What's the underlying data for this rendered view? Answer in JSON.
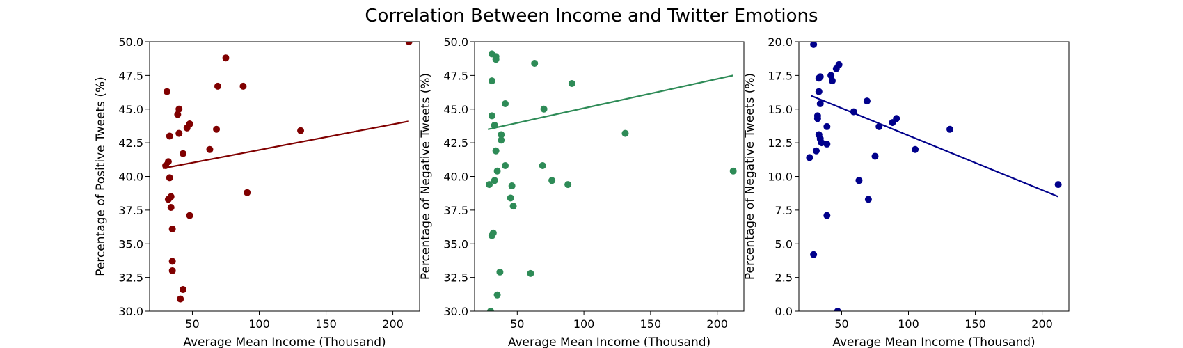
{
  "figure": {
    "title": "Correlation Between Income and Twitter Emotions"
  },
  "chart_data": [
    {
      "type": "scatter",
      "xlabel": "Average Mean Income (Thousand)",
      "ylabel": "Percentage of Positive Tweets (%)",
      "xlim": [
        18,
        220
      ],
      "ylim": [
        30,
        50
      ],
      "xticks": [
        50,
        100,
        150,
        200
      ],
      "yticks": [
        "30.0",
        "32.5",
        "35.0",
        "37.5",
        "40.0",
        "42.5",
        "45.0",
        "47.5",
        "50.0"
      ],
      "color": "#800000",
      "points": [
        [
          212,
          50.0
        ],
        [
          75,
          48.8
        ],
        [
          69,
          46.7
        ],
        [
          88,
          46.7
        ],
        [
          31,
          46.3
        ],
        [
          40,
          45.0
        ],
        [
          39,
          44.6
        ],
        [
          48,
          43.9
        ],
        [
          46,
          43.6
        ],
        [
          68,
          43.5
        ],
        [
          131,
          43.4
        ],
        [
          40,
          43.2
        ],
        [
          33,
          43.0
        ],
        [
          63,
          42.0
        ],
        [
          43,
          41.7
        ],
        [
          32,
          41.1
        ],
        [
          30,
          40.8
        ],
        [
          33,
          39.9
        ],
        [
          91,
          38.8
        ],
        [
          34,
          38.5
        ],
        [
          32,
          38.3
        ],
        [
          48,
          37.1
        ],
        [
          34,
          37.7
        ],
        [
          35,
          36.1
        ],
        [
          35,
          33.7
        ],
        [
          35,
          33.0
        ],
        [
          43,
          31.6
        ],
        [
          41,
          30.9
        ]
      ],
      "trend": {
        "x": [
          28,
          212
        ],
        "y": [
          40.6,
          44.1
        ]
      }
    },
    {
      "type": "scatter",
      "xlabel": "Average Mean Income (Thousand)",
      "ylabel": "Percentage of Negative Tweets (%)",
      "xlim": [
        18,
        220
      ],
      "ylim": [
        30,
        50
      ],
      "xticks": [
        50,
        100,
        150,
        200
      ],
      "yticks": [
        "30.0",
        "32.5",
        "35.0",
        "37.5",
        "40.0",
        "42.5",
        "45.0",
        "47.5",
        "50.0"
      ],
      "color": "#2e8b57",
      "points": [
        [
          31,
          49.1
        ],
        [
          34,
          48.9
        ],
        [
          34,
          48.7
        ],
        [
          63,
          48.4
        ],
        [
          31,
          47.1
        ],
        [
          91,
          46.9
        ],
        [
          41,
          45.4
        ],
        [
          70,
          45.0
        ],
        [
          31,
          44.5
        ],
        [
          33,
          43.8
        ],
        [
          131,
          43.2
        ],
        [
          38,
          43.1
        ],
        [
          38,
          42.7
        ],
        [
          34,
          41.9
        ],
        [
          41,
          40.8
        ],
        [
          69,
          40.8
        ],
        [
          35,
          40.4
        ],
        [
          212,
          40.4
        ],
        [
          33,
          39.7
        ],
        [
          76,
          39.7
        ],
        [
          29,
          39.4
        ],
        [
          46,
          39.3
        ],
        [
          88,
          39.4
        ],
        [
          45,
          38.4
        ],
        [
          47,
          37.8
        ],
        [
          32,
          35.8
        ],
        [
          31,
          35.6
        ],
        [
          37,
          32.9
        ],
        [
          60,
          32.8
        ],
        [
          35,
          31.2
        ],
        [
          30,
          30.0
        ]
      ],
      "trend": {
        "x": [
          28,
          212
        ],
        "y": [
          43.5,
          47.5
        ]
      }
    },
    {
      "type": "scatter",
      "xlabel": "Average Mean Income (Thousand)",
      "ylabel": "Percentage of Negative Tweets (%)",
      "xlim": [
        18,
        220
      ],
      "ylim": [
        0,
        20
      ],
      "xticks": [
        50,
        100,
        150,
        200
      ],
      "yticks": [
        "0.0",
        "2.5",
        "5.0",
        "7.5",
        "10.0",
        "12.5",
        "15.0",
        "17.5",
        "20.0"
      ],
      "color": "#00008b",
      "points": [
        [
          29,
          19.8
        ],
        [
          48,
          18.3
        ],
        [
          46,
          18.0
        ],
        [
          34,
          17.4
        ],
        [
          33,
          17.3
        ],
        [
          42,
          17.5
        ],
        [
          43,
          17.1
        ],
        [
          33,
          16.3
        ],
        [
          34,
          15.4
        ],
        [
          69,
          15.6
        ],
        [
          59,
          14.8
        ],
        [
          32,
          14.5
        ],
        [
          32,
          14.3
        ],
        [
          91,
          14.3
        ],
        [
          88,
          14.0
        ],
        [
          39,
          13.7
        ],
        [
          78,
          13.7
        ],
        [
          131,
          13.5
        ],
        [
          33,
          13.1
        ],
        [
          34,
          12.8
        ],
        [
          35,
          12.5
        ],
        [
          39,
          12.4
        ],
        [
          105,
          12.0
        ],
        [
          31,
          11.9
        ],
        [
          75,
          11.5
        ],
        [
          26,
          11.4
        ],
        [
          63,
          9.7
        ],
        [
          212,
          9.4
        ],
        [
          70,
          8.3
        ],
        [
          39,
          7.1
        ],
        [
          29,
          4.2
        ],
        [
          47,
          0.0
        ]
      ],
      "trend": {
        "x": [
          27,
          212
        ],
        "y": [
          16.0,
          8.5
        ]
      }
    }
  ]
}
